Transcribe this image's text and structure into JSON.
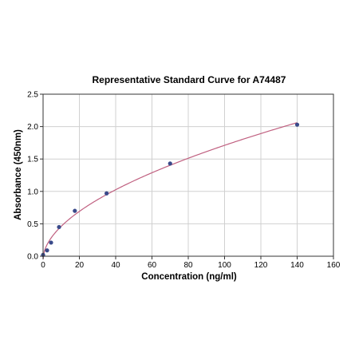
{
  "chart_data": {
    "type": "scatter",
    "title": "Representative Standard Curve for A74487",
    "xlabel": "Concentration (ng/ml)",
    "ylabel": "Absorbance (450nm)",
    "xlim": [
      0,
      160
    ],
    "ylim": [
      0,
      2.5
    ],
    "xticks": [
      0,
      20,
      40,
      60,
      80,
      100,
      120,
      140,
      160
    ],
    "yticks": [
      0.0,
      0.5,
      1.0,
      1.5,
      2.0,
      2.5
    ],
    "xtick_labels": [
      "0",
      "20",
      "40",
      "60",
      "80",
      "100",
      "120",
      "140",
      "160"
    ],
    "ytick_labels": [
      "0.0",
      "0.5",
      "1.0",
      "1.5",
      "2.0",
      "2.5"
    ],
    "grid": true,
    "series": [
      {
        "x": [
          0,
          2.2,
          4.4,
          8.8,
          17.5,
          35,
          70,
          140
        ],
        "y": [
          0.02,
          0.09,
          0.21,
          0.45,
          0.7,
          0.97,
          1.43,
          2.03
        ],
        "color": "#3a4a8a"
      }
    ],
    "fit_curve": {
      "color": "#c06080"
    }
  }
}
